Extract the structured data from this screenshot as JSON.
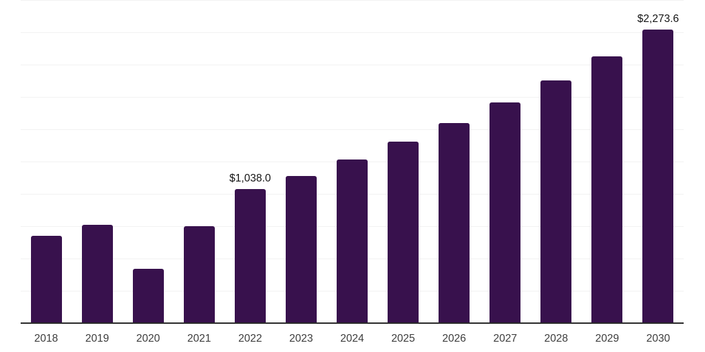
{
  "chart_data": {
    "type": "bar",
    "title": "",
    "xlabel": "",
    "ylabel": "",
    "categories": [
      "2018",
      "2019",
      "2020",
      "2021",
      "2022",
      "2023",
      "2024",
      "2025",
      "2026",
      "2027",
      "2028",
      "2029",
      "2030"
    ],
    "values": [
      678,
      762,
      420,
      750,
      1038.0,
      1138,
      1266,
      1404,
      1548,
      1707,
      1879,
      2065,
      2273.6
    ],
    "data_labels": [
      "",
      "",
      "",
      "",
      "$1,038.0",
      "",
      "",
      "",
      "",
      "",
      "",
      "",
      "$2,273.6"
    ],
    "ylim": [
      0,
      2500
    ],
    "grid_step": 250,
    "grid": "horizontal",
    "legend_position": "none",
    "y_axis_tick_labels_visible": false,
    "colors": {
      "bar": "#38114d",
      "grid_line": "#f2f2f2",
      "axis_line": "#2a2a2a",
      "tick_label": "#3d3d3d",
      "data_label": "#141414",
      "background": "#ffffff"
    }
  }
}
